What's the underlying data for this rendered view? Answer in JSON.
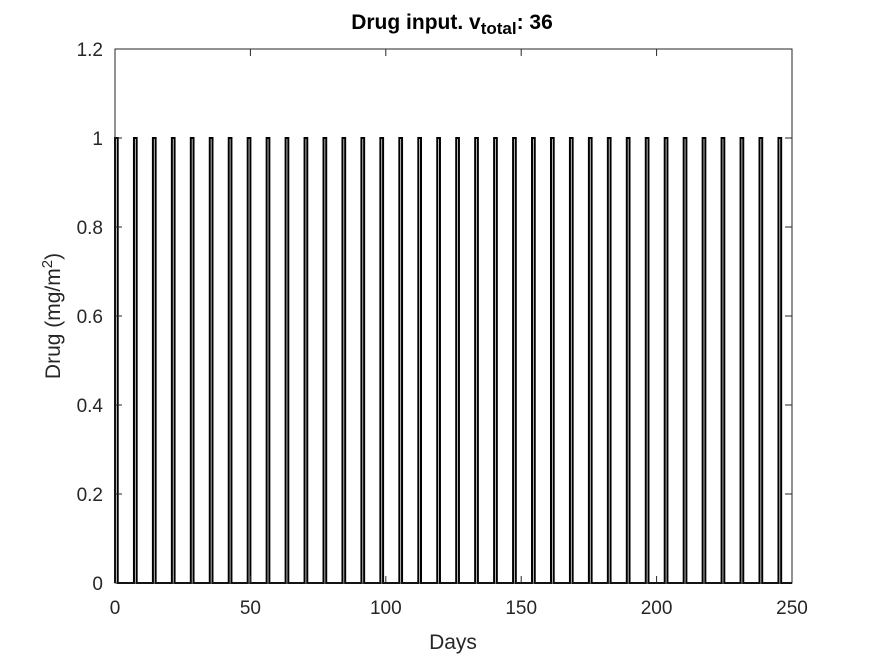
{
  "chart_data": {
    "type": "line",
    "title": {
      "prefix": "Drug input. v",
      "subscript": "total",
      "suffix": ": 36"
    },
    "xlabel": "Days",
    "ylabel": {
      "main": "Drug (mg/m",
      "superscript": "2",
      "close": ")"
    },
    "xlim": [
      0,
      250
    ],
    "ylim": [
      0,
      1.2
    ],
    "xticks": [
      0,
      50,
      100,
      150,
      200,
      250
    ],
    "xtick_labels": [
      "0",
      "50",
      "100",
      "150",
      "200",
      "250"
    ],
    "yticks": [
      0,
      0.2,
      0.4,
      0.6,
      0.8,
      1,
      1.2
    ],
    "ytick_labels": [
      "0",
      "0.2",
      "0.4",
      "0.6",
      "0.8",
      "1",
      "1.2"
    ],
    "grid": false,
    "series": [
      {
        "line_color": "#000000",
        "pulse_value": 1,
        "pulse_duration_days": 1,
        "pulse_starts": [
          0,
          7,
          14,
          21,
          28,
          35,
          42,
          49,
          56,
          63,
          70,
          77,
          84,
          91,
          98,
          105,
          112,
          119,
          126,
          133,
          140,
          147,
          154,
          161,
          168,
          175,
          182,
          189,
          196,
          203,
          210,
          217,
          224,
          231,
          238,
          245
        ]
      }
    ]
  }
}
